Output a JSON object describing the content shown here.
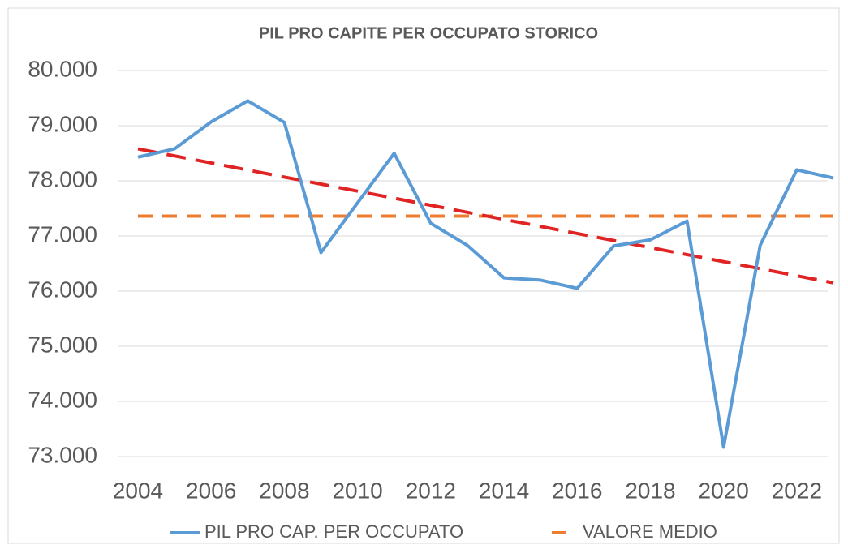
{
  "chart_data": {
    "type": "line",
    "title": "PIL PRO CAPITE PER OCCUPATO STORICO",
    "x": [
      2004,
      2005,
      2006,
      2007,
      2008,
      2009,
      2010,
      2011,
      2012,
      2013,
      2014,
      2015,
      2016,
      2017,
      2018,
      2019,
      2020,
      2021,
      2022,
      2023
    ],
    "xlim": [
      2004,
      2023
    ],
    "xticks": [
      2004,
      2006,
      2008,
      2010,
      2012,
      2014,
      2016,
      2018,
      2020,
      2022
    ],
    "ylim": [
      73000,
      80000
    ],
    "yticks": [
      {
        "value": 73000,
        "label": "73.000"
      },
      {
        "value": 74000,
        "label": "74.000"
      },
      {
        "value": 75000,
        "label": "75.000"
      },
      {
        "value": 76000,
        "label": "76.000"
      },
      {
        "value": 77000,
        "label": "77.000"
      },
      {
        "value": 78000,
        "label": "78.000"
      },
      {
        "value": 79000,
        "label": "79.000"
      },
      {
        "value": 80000,
        "label": "80.000"
      }
    ],
    "grid": true,
    "legend": "bottom",
    "series": [
      {
        "name": "PIL PRO CAP. PER OCCUPATO",
        "color": "#5b9bd5",
        "style": "solid",
        "values": [
          78430,
          78580,
          79070,
          79450,
          79060,
          76700,
          77600,
          78500,
          77230,
          76830,
          76240,
          76200,
          76050,
          76820,
          76930,
          77270,
          73170,
          76830,
          78200,
          78050
        ]
      },
      {
        "name": "VALORE MEDIO",
        "color": "#ed7d31",
        "style": "dashed",
        "values": [
          77360,
          77360,
          77360,
          77360,
          77360,
          77360,
          77360,
          77360,
          77360,
          77360,
          77360,
          77360,
          77360,
          77360,
          77360,
          77360,
          77360,
          77360,
          77360,
          77360
        ]
      },
      {
        "color": "#e02424",
        "style": "dashed",
        "values": [
          78580,
          78452,
          78324,
          78196,
          78068,
          77941,
          77813,
          77685,
          77557,
          77429,
          77301,
          77173,
          77045,
          76917,
          76789,
          76662,
          76534,
          76406,
          76278,
          76150
        ]
      }
    ]
  }
}
